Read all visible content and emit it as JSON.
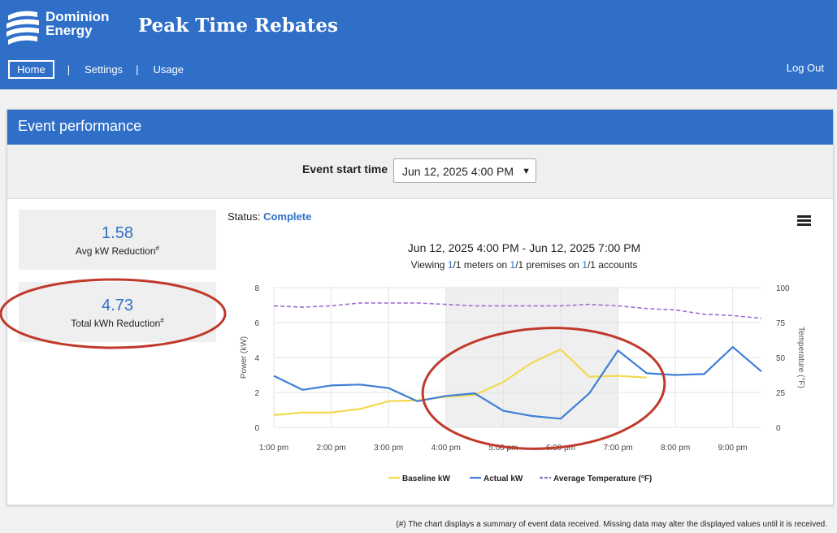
{
  "brand": {
    "line1": "Dominion",
    "line2": "Energy"
  },
  "app_title": "Peak Time Rebates",
  "nav": {
    "home": "Home",
    "settings": "Settings",
    "usage": "Usage",
    "logout": "Log Out",
    "separator": "|"
  },
  "card_title": "Event performance",
  "event_selector": {
    "label": "Event start time",
    "value": "Jun 12, 2025 4:00 PM"
  },
  "stats": [
    {
      "value": "1.58",
      "label": "Avg kW Reduction",
      "mark": "#"
    },
    {
      "value": "4.73",
      "label": "Total kWh Reduction",
      "mark": "#"
    }
  ],
  "status": {
    "label": "Status:",
    "value": "Complete"
  },
  "chart_header": {
    "title": "Jun 12, 2025 4:00 PM - Jun 12, 2025 7:00 PM",
    "sub_pre": "Viewing ",
    "meters_n": "1",
    "meters_text": "/1 meters on ",
    "premises_n": "1",
    "premises_text": "/1 premises on ",
    "accounts_n": "1",
    "accounts_text": "/1 accounts"
  },
  "footnote": "(#) The chart displays a summary of event data received. Missing data may alter the displayed values until it is received.",
  "colors": {
    "brand_blue": "#2f6fc8",
    "baseline": "#f3d94e",
    "actual": "#3f7fd6",
    "temperature": "#9b6fd1",
    "annotation_circle": "#c0392b"
  },
  "chart_data": {
    "type": "line",
    "x": [
      "1:00 pm",
      "1:30 pm",
      "2:00 pm",
      "2:30 pm",
      "3:00 pm",
      "3:30 pm",
      "4:00 pm",
      "4:30 pm",
      "5:00 pm",
      "5:30 pm",
      "6:00 pm",
      "6:30 pm",
      "7:00 pm",
      "7:30 pm",
      "8:00 pm",
      "8:30 pm",
      "9:00 pm",
      "9:30 pm"
    ],
    "x_ticks": [
      "1:00 pm",
      "2:00 pm",
      "3:00 pm",
      "4:00 pm",
      "5:00 pm",
      "6:00 pm",
      "7:00 pm",
      "8:00 pm",
      "9:00 pm"
    ],
    "ylabel": "Power (kW)",
    "y2label": "Temperature (°F)",
    "ylim": [
      0,
      8
    ],
    "y_ticks": [
      "0",
      "2",
      "4",
      "6",
      "8"
    ],
    "y2lim": [
      0,
      100
    ],
    "y2_ticks": [
      "0",
      "25",
      "50",
      "75",
      "100"
    ],
    "event_window": [
      "4:00 pm",
      "7:00 pm"
    ],
    "series": [
      {
        "name": "Baseline kW",
        "axis": "left",
        "style": "solid",
        "values": [
          0.7,
          0.85,
          0.85,
          1.05,
          1.5,
          1.55,
          1.75,
          1.85,
          2.6,
          3.7,
          4.45,
          2.9,
          2.95,
          2.85,
          null,
          null,
          null,
          null
        ]
      },
      {
        "name": "Actual kW",
        "axis": "left",
        "style": "solid",
        "values": [
          2.95,
          2.15,
          2.4,
          2.45,
          2.25,
          1.5,
          1.8,
          1.95,
          0.95,
          0.65,
          0.5,
          1.95,
          4.4,
          3.1,
          3.0,
          3.05,
          4.6,
          3.2
        ]
      },
      {
        "name": "Average Temperature (°F)",
        "axis": "right",
        "style": "dashed",
        "values": [
          87,
          86,
          87,
          89,
          89,
          89,
          88,
          87,
          87,
          87,
          87,
          88,
          87,
          85,
          84,
          81,
          80,
          78
        ]
      }
    ],
    "legend_position": "bottom",
    "grid": true
  }
}
